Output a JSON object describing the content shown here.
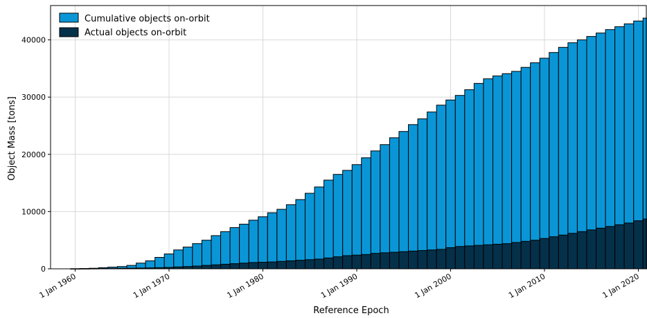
{
  "chart_data": {
    "type": "bar",
    "xlabel": "Reference Epoch",
    "ylabel": "Object Mass [tons]",
    "xlim": [
      1960,
      2021
    ],
    "ylim": [
      0,
      46000
    ],
    "grid": true,
    "legend_position": "top-left",
    "x_ticks": [
      {
        "value": 1960,
        "label": "1 Jan 1960"
      },
      {
        "value": 1970,
        "label": "1 Jan 1970"
      },
      {
        "value": 1980,
        "label": "1 Jan 1980"
      },
      {
        "value": 1990,
        "label": "1 Jan 1990"
      },
      {
        "value": 2000,
        "label": "1 Jan 2000"
      },
      {
        "value": 2010,
        "label": "1 Jan 2010"
      },
      {
        "value": 2020,
        "label": "1 Jan 2020"
      }
    ],
    "y_ticks": [
      {
        "value": 0,
        "label": "0"
      },
      {
        "value": 10000,
        "label": "10000"
      },
      {
        "value": 20000,
        "label": "20000"
      },
      {
        "value": 30000,
        "label": "30000"
      },
      {
        "value": 40000,
        "label": "40000"
      }
    ],
    "categories": [
      1960,
      1961,
      1962,
      1963,
      1964,
      1965,
      1966,
      1967,
      1968,
      1969,
      1970,
      1971,
      1972,
      1973,
      1974,
      1975,
      1976,
      1977,
      1978,
      1979,
      1980,
      1981,
      1982,
      1983,
      1984,
      1985,
      1986,
      1987,
      1988,
      1989,
      1990,
      1991,
      1992,
      1993,
      1994,
      1995,
      1996,
      1997,
      1998,
      1999,
      2000,
      2001,
      2002,
      2003,
      2004,
      2005,
      2006,
      2007,
      2008,
      2009,
      2010,
      2011,
      2012,
      2013,
      2014,
      2015,
      2016,
      2017,
      2018,
      2019,
      2020
    ],
    "series": [
      {
        "name": "Cumulative objects on-orbit",
        "color": "#0a96d6",
        "values": [
          20,
          50,
          100,
          200,
          300,
          400,
          600,
          1000,
          1400,
          2000,
          2600,
          3300,
          3800,
          4400,
          5000,
          5800,
          6500,
          7200,
          7800,
          8500,
          9100,
          9800,
          10400,
          11200,
          12100,
          13200,
          14300,
          15500,
          16500,
          17200,
          18200,
          19400,
          20600,
          21700,
          22900,
          24000,
          25200,
          26200,
          27400,
          28600,
          29500,
          30300,
          31300,
          32400,
          33200,
          33700,
          34100,
          34500,
          35200,
          36000,
          36800,
          37800,
          38700,
          39500,
          40000,
          40600,
          41200,
          41800,
          42300,
          42800,
          43300
        ]
      },
      {
        "name": "Actual objects on-orbit",
        "color": "#05304a",
        "values": [
          5,
          10,
          30,
          50,
          70,
          90,
          110,
          130,
          160,
          200,
          250,
          330,
          400,
          480,
          600,
          700,
          800,
          900,
          1000,
          1100,
          1150,
          1200,
          1300,
          1400,
          1500,
          1600,
          1700,
          1900,
          2100,
          2300,
          2400,
          2500,
          2700,
          2800,
          2900,
          3000,
          3100,
          3200,
          3300,
          3400,
          3700,
          3900,
          4000,
          4100,
          4200,
          4300,
          4400,
          4600,
          4800,
          5000,
          5300,
          5600,
          5900,
          6200,
          6500,
          6800,
          7100,
          7400,
          7700,
          8000,
          8400
        ]
      }
    ],
    "extra_bars": [
      {
        "x": 2021,
        "cumulative": 43800,
        "actual": 8700
      }
    ]
  }
}
